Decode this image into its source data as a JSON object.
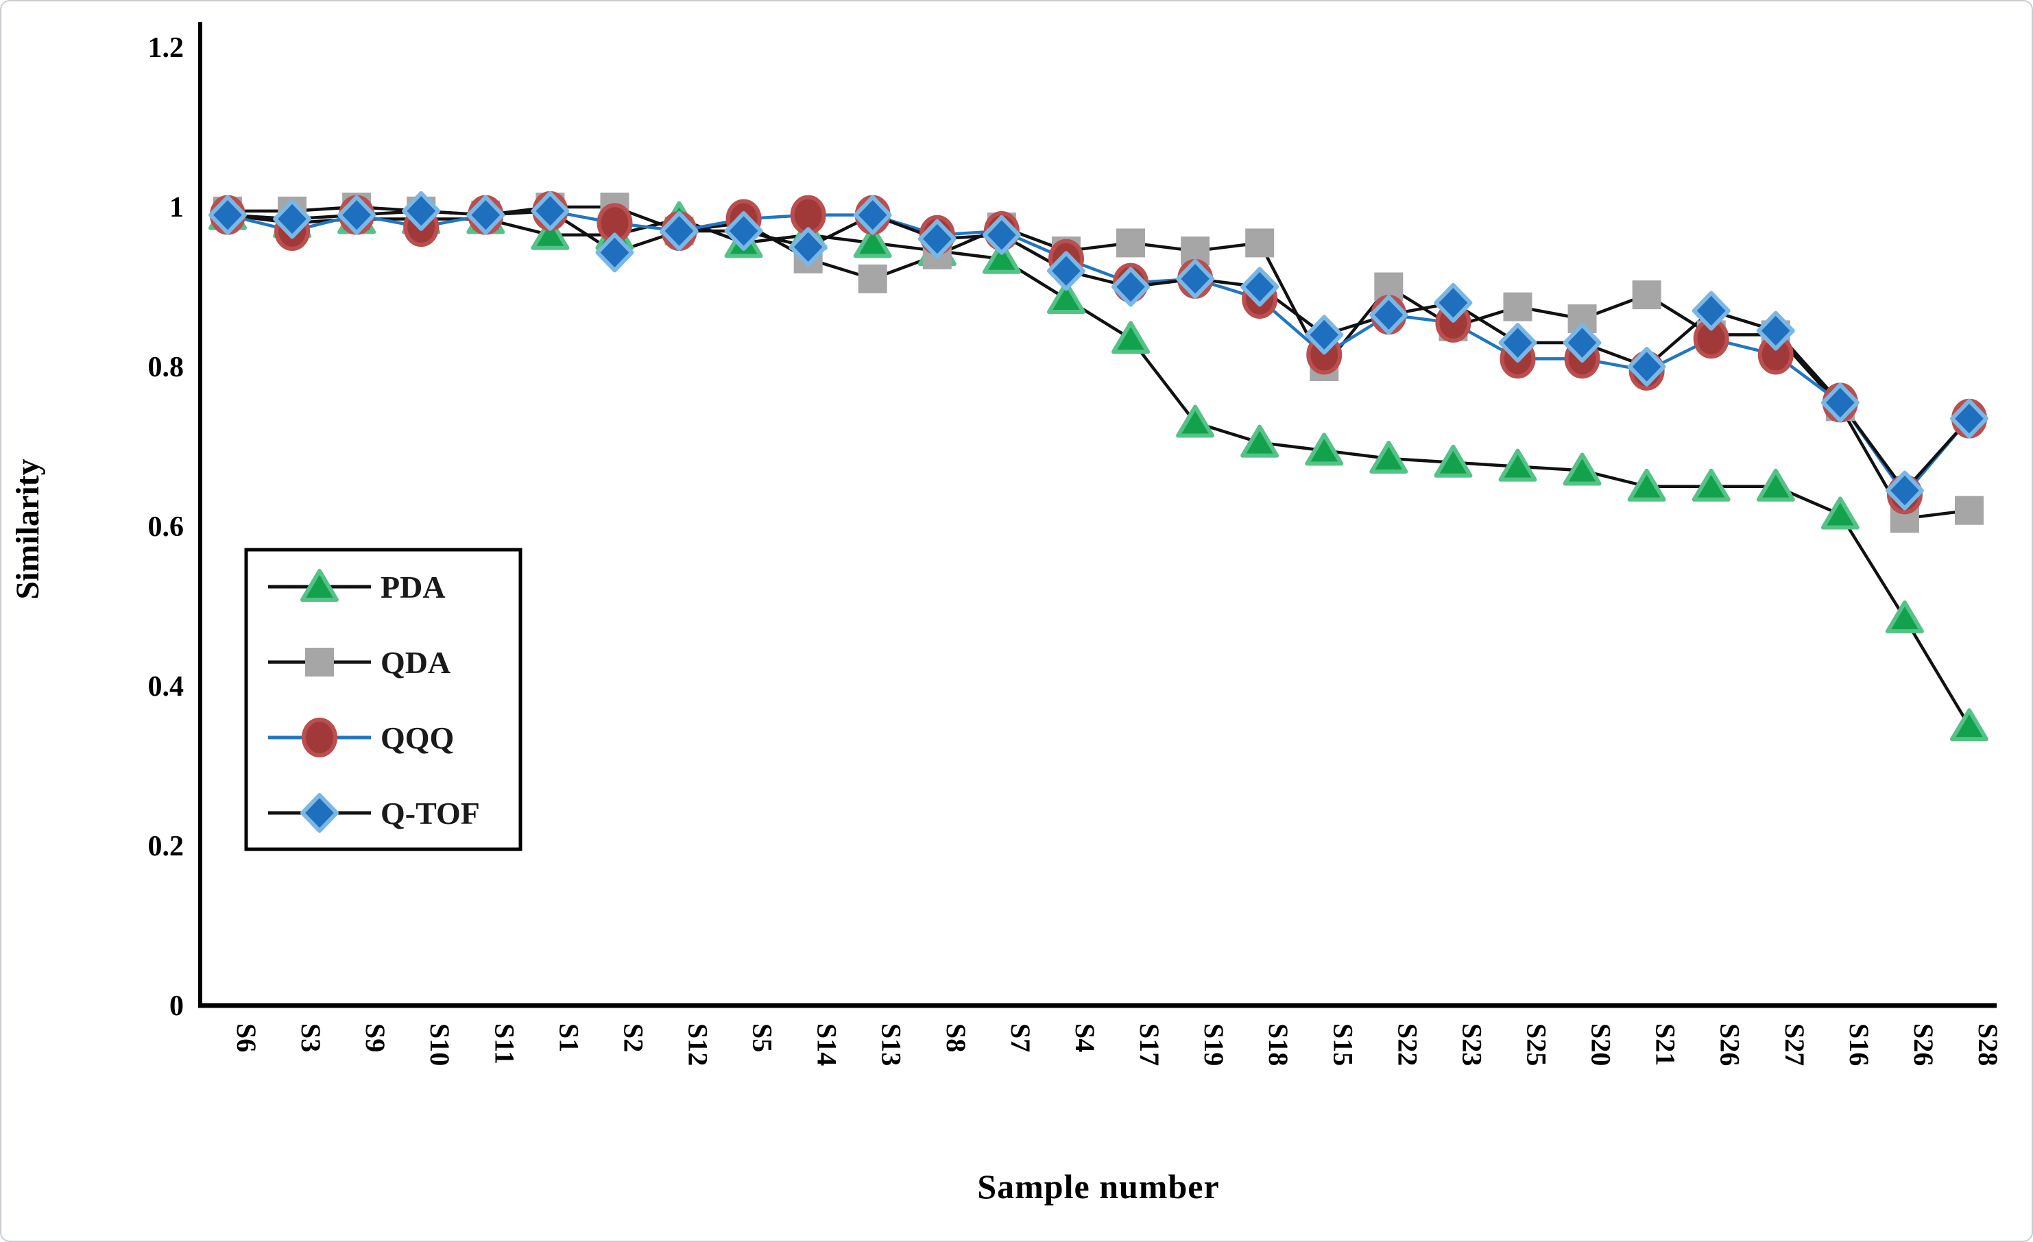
{
  "figure": {
    "background": "#ffffff",
    "border_color": "#c9cdd1",
    "text_color": "#000000"
  },
  "chart_data": {
    "type": "line",
    "title": "",
    "xlabel": "Sample number",
    "ylabel": "Similarity",
    "ylim": [
      0,
      1.2
    ],
    "yticks": [
      0,
      0.2,
      0.4,
      0.6,
      0.8,
      1,
      1.2
    ],
    "ytick_labels": [
      "0",
      "0.2",
      "0.4",
      "0.6",
      "0.8",
      "1",
      "1.2"
    ],
    "grid": false,
    "x_tick_rotation_deg": 90,
    "legend_position": "inside-middle-left",
    "categories": [
      "S6",
      "S3",
      "S9",
      "S10",
      "S11",
      "S1",
      "S2",
      "S12",
      "S5",
      "S14",
      "S13",
      "S8",
      "S7",
      "S4",
      "S17",
      "S19",
      "S18",
      "S15",
      "S22",
      "S23",
      "S25",
      "S20",
      "S21",
      "S26",
      "S27",
      "S16",
      "S26",
      "S28"
    ],
    "series": [
      {
        "name": "PDA",
        "marker": "triangle",
        "marker_color": "#12a24b",
        "marker_edge_color": "#55c288",
        "line_color": "#111111",
        "values": [
          0.99,
          0.98,
          0.985,
          0.985,
          0.985,
          0.965,
          0.965,
          0.985,
          0.955,
          0.965,
          0.955,
          0.945,
          0.935,
          0.885,
          0.835,
          0.73,
          0.705,
          0.695,
          0.685,
          0.68,
          0.675,
          0.67,
          0.65,
          0.65,
          0.65,
          0.615,
          0.485,
          0.35
        ]
      },
      {
        "name": "QDA",
        "marker": "square",
        "marker_color": "#a6a6a6",
        "marker_edge_color": "#a6a6a6",
        "line_color": "#111111",
        "values": [
          0.995,
          0.995,
          1.0,
          0.995,
          0.99,
          1.0,
          1.0,
          0.97,
          0.98,
          0.935,
          0.91,
          0.94,
          0.975,
          0.945,
          0.955,
          0.945,
          0.955,
          0.8,
          0.9,
          0.85,
          0.875,
          0.86,
          0.89,
          0.84,
          0.84,
          0.75,
          0.61,
          0.62
        ]
      },
      {
        "name": "QQQ",
        "marker": "circle",
        "marker_color": "#a23939",
        "marker_edge_color": "#bb4e4e",
        "line_color": "#2176c2",
        "values": [
          0.99,
          0.97,
          0.99,
          0.975,
          0.99,
          0.995,
          0.98,
          0.97,
          0.985,
          0.99,
          0.99,
          0.965,
          0.97,
          0.935,
          0.905,
          0.91,
          0.885,
          0.815,
          0.865,
          0.855,
          0.81,
          0.81,
          0.795,
          0.835,
          0.815,
          0.755,
          0.64,
          0.735
        ]
      },
      {
        "name": "Q-TOF",
        "marker": "diamond",
        "marker_color": "#1e6fbe",
        "marker_edge_color": "#7ab7e4",
        "line_color": "#111111",
        "values": [
          0.99,
          0.985,
          0.99,
          0.995,
          0.99,
          0.995,
          0.943,
          0.97,
          0.97,
          0.95,
          0.99,
          0.96,
          0.965,
          0.92,
          0.9,
          0.91,
          0.9,
          0.84,
          0.865,
          0.88,
          0.83,
          0.83,
          0.8,
          0.87,
          0.845,
          0.755,
          0.645,
          0.735
        ]
      }
    ]
  }
}
